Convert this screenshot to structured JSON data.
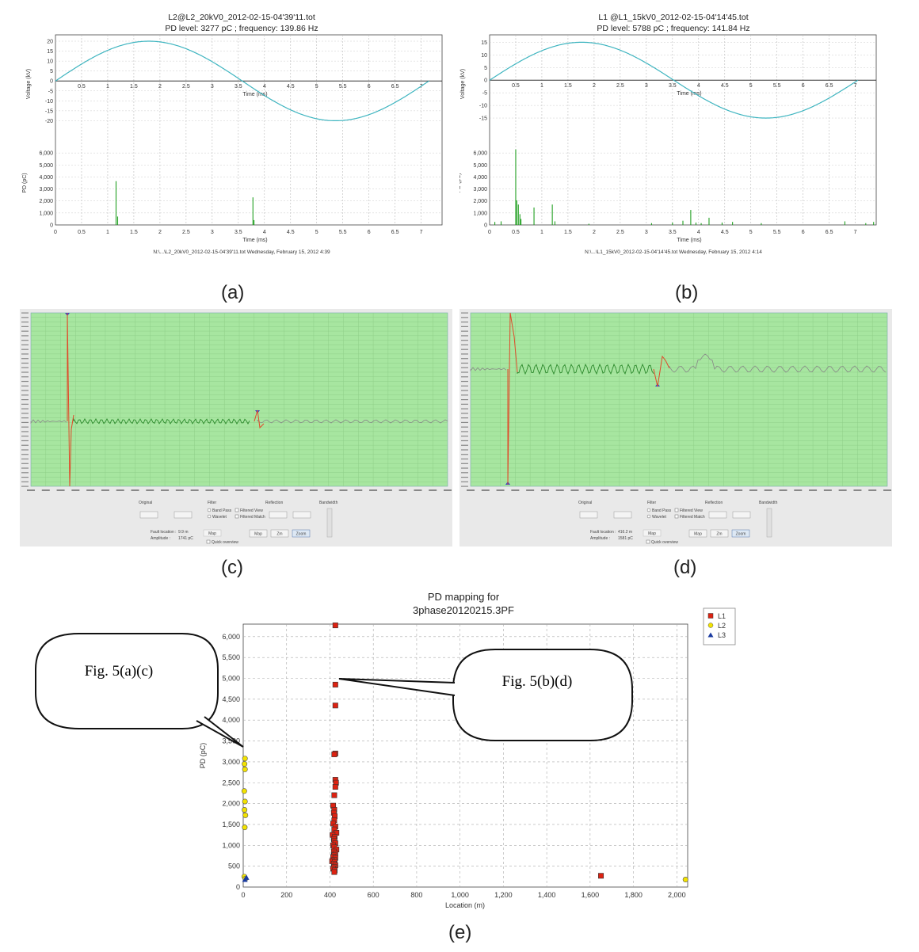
{
  "captions": [
    "(a)",
    "(b)",
    "(c)",
    "(d)",
    "(e)"
  ],
  "chart_data": [
    {
      "type": "line",
      "panel": "a",
      "title": "L2@L2_20kV0_2012-02-15-04'39'11.tot",
      "subtitle": "PD level: 3277 pC ; frequency: 139.86 Hz",
      "voltage": {
        "ylabel": "Voltage (kV)",
        "xlabel": "Time (ms)",
        "ylim": [
          -25,
          22
        ],
        "yticks": [
          "20",
          "15",
          "10",
          "5",
          "0",
          "-5",
          "-10",
          "-15",
          "-20"
        ],
        "xticks": [
          "0.5",
          "1",
          "1.5",
          "2",
          "2.5",
          "3",
          "3.5",
          "4",
          "4.5",
          "5",
          "5.5",
          "6",
          "6.5",
          "7"
        ],
        "amplitude": 20,
        "period_ms": 7.15
      },
      "pd": {
        "ylabel": "PD (pC)",
        "xlabel": "Time (ms)",
        "ylim": [
          0,
          7000
        ],
        "yticks": [
          "0",
          "1,000",
          "2,000",
          "3,000",
          "4,000",
          "5,000",
          "6,000"
        ],
        "xticks": [
          "0",
          "0.5",
          "1",
          "1.5",
          "2",
          "2.5",
          "3",
          "3.5",
          "4",
          "4.5",
          "5",
          "5.5",
          "6",
          "6.5",
          "7"
        ],
        "xlim": [
          0,
          7.4
        ],
        "pulses": [
          [
            1.16,
            3650
          ],
          [
            1.19,
            700
          ],
          [
            3.78,
            2300
          ],
          [
            3.8,
            400
          ]
        ]
      },
      "footer": "N:\\...\\L2_20kV0_2012-02-15-04'39'11.tot    Wednesday, February 15, 2012 4:39"
    },
    {
      "type": "line",
      "panel": "b",
      "title": "L1 @L1_15kV0_2012-02-15-04'14'45.tot",
      "subtitle": "PD level: 5788 pC ; frequency: 141.84 Hz",
      "voltage": {
        "ylabel": "Voltage (kV)",
        "xlabel": "Time (ms)",
        "ylim": [
          -20,
          17
        ],
        "yticks": [
          "15",
          "10",
          "5",
          "0",
          "-5",
          "-10",
          "-15"
        ],
        "xticks": [
          "0.5",
          "1",
          "1.5",
          "2",
          "2.5",
          "3",
          "3.5",
          "4",
          "4.5",
          "5",
          "5.5",
          "6",
          "6.5",
          "7"
        ],
        "amplitude": 15,
        "period_ms": 7.05
      },
      "pd": {
        "ylabel": "PD (pC)",
        "xlabel": "Time (ms)",
        "ylim": [
          0,
          7000
        ],
        "yticks": [
          "0",
          "1,000",
          "2,000",
          "3,000",
          "4,000",
          "5,000",
          "6,000"
        ],
        "xticks": [
          "0",
          "0.5",
          "1",
          "1.5",
          "2",
          "2.5",
          "3",
          "3.5",
          "4",
          "4.5",
          "5",
          "5.5",
          "6",
          "6.5",
          "7"
        ],
        "xlim": [
          0,
          7.4
        ],
        "pulses": [
          [
            0.1,
            250
          ],
          [
            0.22,
            300
          ],
          [
            0.5,
            6300
          ],
          [
            0.52,
            2050
          ],
          [
            0.55,
            1700
          ],
          [
            0.58,
            900
          ],
          [
            0.6,
            500
          ],
          [
            0.85,
            1450
          ],
          [
            1.2,
            1700
          ],
          [
            1.25,
            300
          ],
          [
            1.9,
            100
          ],
          [
            3.1,
            150
          ],
          [
            3.5,
            200
          ],
          [
            3.7,
            350
          ],
          [
            3.85,
            1250
          ],
          [
            3.95,
            200
          ],
          [
            4.05,
            150
          ],
          [
            4.2,
            600
          ],
          [
            4.45,
            200
          ],
          [
            4.65,
            250
          ],
          [
            5.2,
            150
          ],
          [
            6.8,
            300
          ],
          [
            7.2,
            150
          ],
          [
            7.35,
            250
          ]
        ]
      },
      "footer": "N:\\...\\L1_15kV0_2012-02-15-04'14'45.tot    Wednesday, February 15, 2012 4:14"
    },
    {
      "type": "line",
      "panel": "c",
      "controls": {
        "original": "Original",
        "filter": "Filter",
        "reflection": "Reflection",
        "bandwidth": "Bandwidth",
        "band_pass": "Band Pass",
        "wavelet": "Wavelet",
        "filtered_view": "Filtered View",
        "filtered_match": "Filtered Match",
        "fault_location_label": "Fault location :",
        "fault_location": "9.9 m",
        "amplitude_label": "Amplitude :",
        "amplitude": "1741 pC",
        "map": "Map",
        "quick_overview": "Quick overview",
        "buttons": [
          "Map",
          "Zm",
          "Zoom"
        ]
      }
    },
    {
      "type": "line",
      "panel": "d",
      "controls": {
        "original": "Original",
        "filter": "Filter",
        "reflection": "Reflection",
        "bandwidth": "Bandwidth",
        "band_pass": "Band Pass",
        "wavelet": "Wavelet",
        "filtered_view": "Filtered View",
        "filtered_match": "Filtered Match",
        "fault_location_label": "Fault location :",
        "fault_location": "416.2 m",
        "amplitude_label": "Amplitude :",
        "amplitude": "1581 pC",
        "map": "Map",
        "quick_overview": "Quick overview",
        "buttons": [
          "Map",
          "Zm",
          "Zoom"
        ]
      }
    },
    {
      "type": "scatter",
      "panel": "e",
      "title": "PD mapping for",
      "subtitle": "3phase20120215.3PF",
      "xlabel": "Location (m)",
      "ylabel": "PD (pC)",
      "xlim": [
        0,
        2050
      ],
      "ylim": [
        0,
        6300
      ],
      "xticks": [
        "0",
        "200",
        "400",
        "600",
        "800",
        "1,000",
        "1,200",
        "1,400",
        "1,600",
        "1,800",
        "2,000"
      ],
      "yticks": [
        "0",
        "500",
        "1,000",
        "1,500",
        "2,000",
        "2,500",
        "3,000",
        "3,500",
        "4,000",
        "4,500",
        "5,000",
        "5,500",
        "6,000"
      ],
      "legend": [
        "L1",
        "L2",
        "L3"
      ],
      "legend_position": "top-right",
      "series": [
        {
          "name": "L1",
          "color": "#dd2211",
          "marker": "square",
          "points": [
            [
              425,
              6270
            ],
            [
              425,
              4850
            ],
            [
              425,
              4350
            ],
            [
              425,
              3200
            ],
            [
              420,
              3180
            ],
            [
              425,
              2570
            ],
            [
              428,
              2500
            ],
            [
              425,
              2400
            ],
            [
              420,
              2200
            ],
            [
              415,
              1950
            ],
            [
              420,
              1850
            ],
            [
              418,
              1780
            ],
            [
              422,
              1700
            ],
            [
              420,
              1600
            ],
            [
              415,
              1520
            ],
            [
              425,
              1450
            ],
            [
              420,
              1380
            ],
            [
              430,
              1300
            ],
            [
              412,
              1250
            ],
            [
              422,
              1200
            ],
            [
              418,
              1150
            ],
            [
              420,
              1100
            ],
            [
              425,
              1050
            ],
            [
              415,
              1000
            ],
            [
              420,
              950
            ],
            [
              430,
              900
            ],
            [
              418,
              850
            ],
            [
              425,
              800
            ],
            [
              420,
              760
            ],
            [
              415,
              720
            ],
            [
              425,
              700
            ],
            [
              420,
              650
            ],
            [
              410,
              620
            ],
            [
              422,
              600
            ],
            [
              418,
              560
            ],
            [
              425,
              520
            ],
            [
              420,
              480
            ],
            [
              415,
              440
            ],
            [
              422,
              400
            ],
            [
              420,
              360
            ],
            [
              1650,
              270
            ]
          ]
        },
        {
          "name": "L2",
          "color": "#f2e200",
          "marker": "circle",
          "points": [
            [
              8,
              3080
            ],
            [
              6,
              2950
            ],
            [
              8,
              2820
            ],
            [
              5,
              2300
            ],
            [
              8,
              2050
            ],
            [
              6,
              1850
            ],
            [
              10,
              1720
            ],
            [
              7,
              1430
            ],
            [
              5,
              250
            ],
            [
              10,
              200
            ],
            [
              2040,
              180
            ]
          ]
        },
        {
          "name": "L3",
          "color": "#1a3aa0",
          "marker": "triangle",
          "points": [
            [
              15,
              230
            ],
            [
              8,
              180
            ]
          ]
        }
      ],
      "callouts": [
        "Fig. 5(a)(c)",
        "Fig. 5(b)(d)"
      ]
    }
  ]
}
